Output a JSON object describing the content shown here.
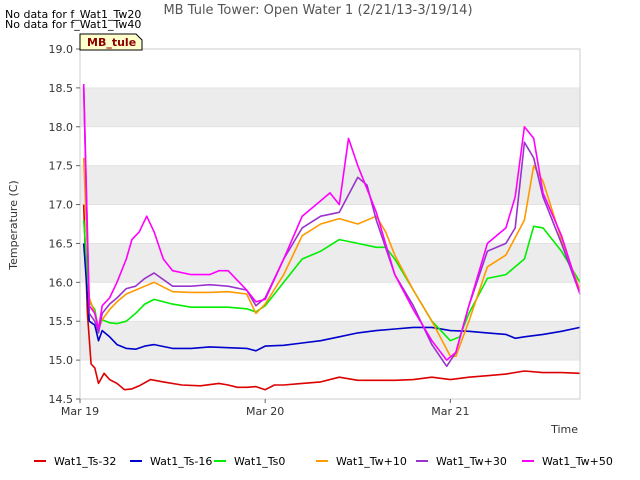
{
  "chart_data": {
    "type": "line",
    "title": "MB Tule Tower: Open Water 1 (2/21/13-3/19/14)",
    "notes": [
      "No data for f_Wat1_Tw20",
      "No data for f_Wat1_Tw40"
    ],
    "badge": "MB_tule",
    "xlabel": "Time",
    "ylabel": "Temperature (C)",
    "xlim": [
      0,
      2.7
    ],
    "ylim": [
      14.5,
      19.0
    ],
    "y_ticks": [
      14.5,
      15.0,
      15.5,
      16.0,
      16.5,
      17.0,
      17.5,
      18.0,
      18.5,
      19.0
    ],
    "x_ticks": [
      {
        "value": 0,
        "label": "Mar 19"
      },
      {
        "value": 1,
        "label": "Mar 20"
      },
      {
        "value": 2,
        "label": "Mar 21"
      }
    ],
    "grid": "horizontal bands",
    "legend_position": "bottom",
    "series": [
      {
        "name": "Wat1_Ts-32",
        "color": "#dd0000",
        "x": [
          0.02,
          0.04,
          0.06,
          0.08,
          0.1,
          0.13,
          0.16,
          0.2,
          0.24,
          0.28,
          0.32,
          0.38,
          0.45,
          0.55,
          0.65,
          0.75,
          0.8,
          0.85,
          0.9,
          0.95,
          1.0,
          1.05,
          1.1,
          1.2,
          1.3,
          1.4,
          1.5,
          1.6,
          1.7,
          1.8,
          1.9,
          2.0,
          2.1,
          2.2,
          2.3,
          2.4,
          2.5,
          2.6,
          2.7
        ],
        "y": [
          17.0,
          15.6,
          14.95,
          14.9,
          14.7,
          14.83,
          14.75,
          14.7,
          14.62,
          14.63,
          14.67,
          14.75,
          14.72,
          14.68,
          14.67,
          14.7,
          14.68,
          14.65,
          14.65,
          14.66,
          14.62,
          14.68,
          14.68,
          14.7,
          14.72,
          14.78,
          14.74,
          14.74,
          14.74,
          14.75,
          14.78,
          14.75,
          14.78,
          14.8,
          14.82,
          14.86,
          14.84,
          14.84,
          14.83
        ]
      },
      {
        "name": "Wat1_Ts-16",
        "color": "#0000cc",
        "x": [
          0.02,
          0.05,
          0.08,
          0.1,
          0.12,
          0.16,
          0.2,
          0.25,
          0.3,
          0.35,
          0.4,
          0.5,
          0.6,
          0.7,
          0.8,
          0.9,
          0.95,
          1.0,
          1.1,
          1.2,
          1.3,
          1.4,
          1.5,
          1.6,
          1.7,
          1.8,
          1.9,
          2.0,
          2.1,
          2.2,
          2.3,
          2.35,
          2.4,
          2.5,
          2.6,
          2.7
        ],
        "y": [
          16.5,
          15.5,
          15.45,
          15.25,
          15.38,
          15.3,
          15.2,
          15.15,
          15.14,
          15.18,
          15.2,
          15.15,
          15.15,
          15.17,
          15.16,
          15.15,
          15.12,
          15.18,
          15.19,
          15.22,
          15.25,
          15.3,
          15.35,
          15.38,
          15.4,
          15.42,
          15.42,
          15.38,
          15.37,
          15.35,
          15.33,
          15.28,
          15.3,
          15.33,
          15.37,
          15.42
        ]
      },
      {
        "name": "Wat1_Ts0",
        "color": "#00ee00",
        "x": [
          0.02,
          0.05,
          0.08,
          0.1,
          0.12,
          0.16,
          0.2,
          0.25,
          0.3,
          0.35,
          0.4,
          0.5,
          0.6,
          0.7,
          0.8,
          0.9,
          0.95,
          1.0,
          1.1,
          1.2,
          1.3,
          1.4,
          1.5,
          1.6,
          1.65,
          1.7,
          1.8,
          1.9,
          2.0,
          2.05,
          2.1,
          2.2,
          2.3,
          2.4,
          2.45,
          2.5,
          2.6,
          2.7
        ],
        "y": [
          16.8,
          15.75,
          15.65,
          15.4,
          15.52,
          15.48,
          15.47,
          15.5,
          15.6,
          15.72,
          15.78,
          15.72,
          15.68,
          15.68,
          15.68,
          15.66,
          15.62,
          15.7,
          16.0,
          16.3,
          16.4,
          16.55,
          16.5,
          16.45,
          16.45,
          16.3,
          15.9,
          15.5,
          15.25,
          15.3,
          15.6,
          16.05,
          16.1,
          16.3,
          16.72,
          16.7,
          16.4,
          16.0
        ]
      },
      {
        "name": "Wat1_Tw+10",
        "color": "#ff9900",
        "x": [
          0.02,
          0.05,
          0.08,
          0.1,
          0.12,
          0.16,
          0.2,
          0.25,
          0.3,
          0.35,
          0.4,
          0.5,
          0.6,
          0.7,
          0.8,
          0.9,
          0.95,
          1.0,
          1.1,
          1.2,
          1.3,
          1.4,
          1.5,
          1.6,
          1.65,
          1.7,
          1.8,
          1.9,
          2.0,
          2.03,
          2.1,
          2.2,
          2.3,
          2.4,
          2.45,
          2.5,
          2.6,
          2.7
        ],
        "y": [
          17.6,
          15.8,
          15.6,
          15.4,
          15.52,
          15.65,
          15.75,
          15.85,
          15.9,
          15.95,
          16.0,
          15.88,
          15.87,
          15.87,
          15.88,
          15.85,
          15.6,
          15.72,
          16.1,
          16.6,
          16.75,
          16.82,
          16.75,
          16.85,
          16.65,
          16.35,
          15.9,
          15.5,
          15.05,
          15.05,
          15.5,
          16.2,
          16.35,
          16.8,
          17.5,
          17.3,
          16.55,
          15.9
        ]
      },
      {
        "name": "Wat1_Tw+30",
        "color": "#9933cc",
        "x": [
          0.02,
          0.05,
          0.08,
          0.1,
          0.12,
          0.16,
          0.2,
          0.25,
          0.3,
          0.35,
          0.4,
          0.5,
          0.6,
          0.7,
          0.8,
          0.9,
          0.95,
          1.0,
          1.1,
          1.2,
          1.3,
          1.4,
          1.5,
          1.55,
          1.6,
          1.7,
          1.8,
          1.9,
          1.98,
          2.03,
          2.1,
          2.2,
          2.3,
          2.35,
          2.4,
          2.45,
          2.5,
          2.6,
          2.7
        ],
        "y": [
          18.5,
          15.6,
          15.5,
          15.35,
          15.6,
          15.72,
          15.8,
          15.92,
          15.95,
          16.05,
          16.12,
          15.95,
          15.95,
          15.97,
          15.95,
          15.9,
          15.7,
          15.8,
          16.3,
          16.7,
          16.85,
          16.9,
          17.35,
          17.25,
          16.8,
          16.1,
          15.7,
          15.2,
          14.92,
          15.1,
          15.7,
          16.4,
          16.5,
          16.7,
          17.8,
          17.6,
          17.1,
          16.5,
          15.85
        ]
      },
      {
        "name": "Wat1_Tw+50",
        "color": "#ff00ff",
        "x": [
          0.02,
          0.05,
          0.08,
          0.1,
          0.12,
          0.16,
          0.2,
          0.25,
          0.28,
          0.32,
          0.36,
          0.4,
          0.45,
          0.5,
          0.6,
          0.7,
          0.75,
          0.8,
          0.9,
          0.95,
          1.0,
          1.1,
          1.2,
          1.3,
          1.35,
          1.4,
          1.45,
          1.5,
          1.6,
          1.7,
          1.8,
          1.9,
          1.98,
          2.03,
          2.1,
          2.2,
          2.3,
          2.35,
          2.4,
          2.45,
          2.5,
          2.6,
          2.7
        ],
        "y": [
          18.55,
          15.7,
          15.6,
          15.4,
          15.7,
          15.8,
          16.0,
          16.3,
          16.55,
          16.65,
          16.85,
          16.65,
          16.3,
          16.15,
          16.1,
          16.1,
          16.15,
          16.15,
          15.9,
          15.75,
          15.78,
          16.3,
          16.85,
          17.05,
          17.15,
          17.0,
          17.85,
          17.5,
          16.9,
          16.1,
          15.65,
          15.25,
          15.0,
          15.1,
          15.7,
          16.5,
          16.7,
          17.1,
          18.0,
          17.85,
          17.15,
          16.6,
          15.85
        ]
      }
    ]
  }
}
